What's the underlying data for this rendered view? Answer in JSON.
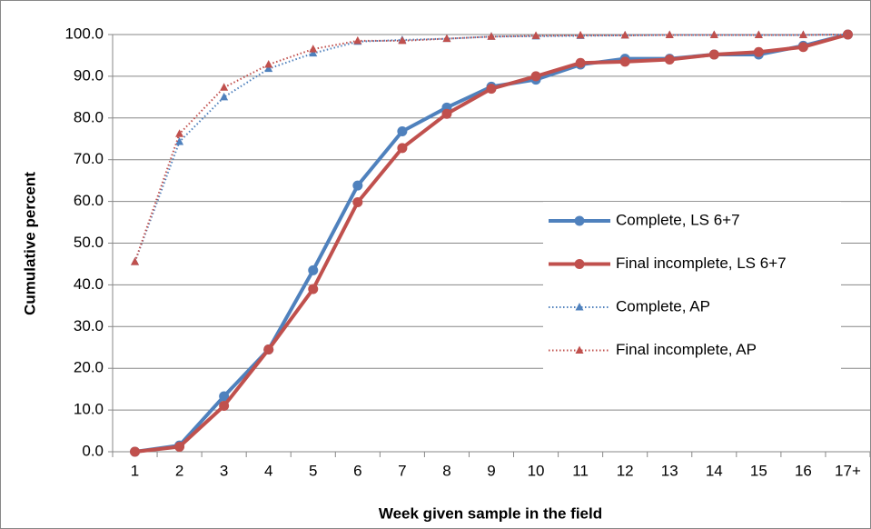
{
  "chart_data": {
    "type": "line",
    "x_label": "Week given sample in the field",
    "y_label": "Cumulative percent",
    "categories": [
      "1",
      "2",
      "3",
      "4",
      "5",
      "6",
      "7",
      "8",
      "9",
      "10",
      "11",
      "12",
      "13",
      "14",
      "15",
      "16",
      "17+"
    ],
    "series": [
      {
        "name": "Complete, LS 6+7",
        "color": "#4f81bd",
        "line_style": "solid",
        "marker": "circle",
        "values": [
          0,
          1.5,
          13.3,
          24.5,
          43.5,
          63.8,
          76.8,
          82.5,
          87.5,
          89.2,
          92.8,
          94.2,
          94.2,
          95.2,
          95.2,
          97.3,
          100
        ]
      },
      {
        "name": "Final incomplete, LS 6+7",
        "color": "#c0504d",
        "line_style": "solid",
        "marker": "circle",
        "values": [
          0,
          1.2,
          11,
          24.5,
          39,
          59.8,
          72.8,
          81,
          87,
          90,
          93.2,
          93.5,
          94,
          95.2,
          95.8,
          97,
          100
        ]
      },
      {
        "name": "Complete, AP",
        "color": "#4f81bd",
        "line_style": "dotted",
        "marker": "triangle",
        "values": [
          45.5,
          74.3,
          85,
          91.8,
          95.5,
          98.3,
          98.7,
          99,
          99.5,
          99.6,
          99.7,
          99.8,
          99.9,
          99.9,
          99.9,
          99.9,
          100
        ]
      },
      {
        "name": "Final incomplete, AP",
        "color": "#c0504d",
        "line_style": "dotted",
        "marker": "triangle",
        "values": [
          45.5,
          76.2,
          87.3,
          92.8,
          96.5,
          98.5,
          98.5,
          99,
          99.5,
          99.7,
          99.8,
          99.8,
          99.9,
          99.9,
          99.9,
          99.9,
          100
        ]
      }
    ],
    "ylim": [
      0,
      100
    ],
    "yticks": [
      {
        "value": 0,
        "label": "0.0"
      },
      {
        "value": 10,
        "label": "10.0"
      },
      {
        "value": 20,
        "label": "20.0"
      },
      {
        "value": 30,
        "label": "30.0"
      },
      {
        "value": 40,
        "label": "40.0"
      },
      {
        "value": 50,
        "label": "50.0"
      },
      {
        "value": 60,
        "label": "60.0"
      },
      {
        "value": 70,
        "label": "70.0"
      },
      {
        "value": 80,
        "label": "80.0"
      },
      {
        "value": 90,
        "label": "90.0"
      },
      {
        "value": 100,
        "label": "100.0"
      }
    ],
    "grid": true,
    "legend": "right"
  }
}
